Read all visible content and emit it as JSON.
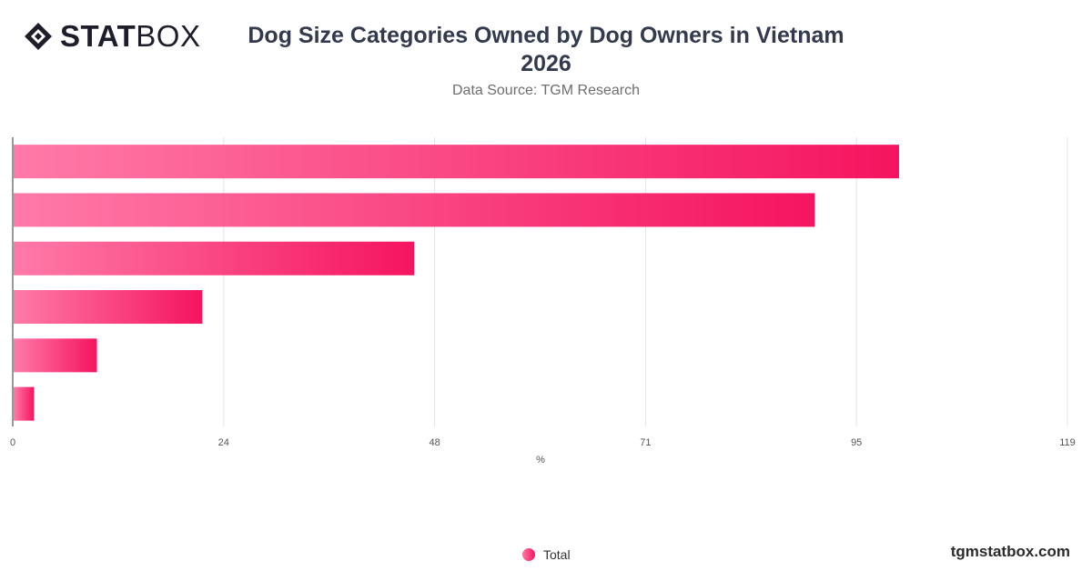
{
  "header": {
    "logo_text_bold": "STAT",
    "logo_text_light": "BOX",
    "logo_icon": "diamond-logo-icon"
  },
  "chart_data": {
    "type": "bar",
    "orientation": "horizontal",
    "title_line1": "Dog Size Categories Owned by Dog Owners in Vietnam",
    "title_line2": "2026",
    "subtitle": "Data Source: TGM Research",
    "xlabel": "%",
    "ylabel": "",
    "xlim": [
      0,
      119
    ],
    "x_ticks": [
      "0",
      "24",
      "48",
      "71",
      "95",
      "119"
    ],
    "categories": [
      "",
      "",
      "",
      "",
      "",
      ""
    ],
    "series": [
      {
        "name": "Total",
        "values": [
          100,
          90.5,
          45.3,
          21.4,
          9.5,
          2.4
        ]
      }
    ],
    "grid": true,
    "legend_position": "bottom",
    "colors": {
      "bar_start": "#ff7aa8",
      "bar_end": "#f5145f"
    }
  },
  "footer": {
    "brand": "tgmstatbox.com"
  }
}
